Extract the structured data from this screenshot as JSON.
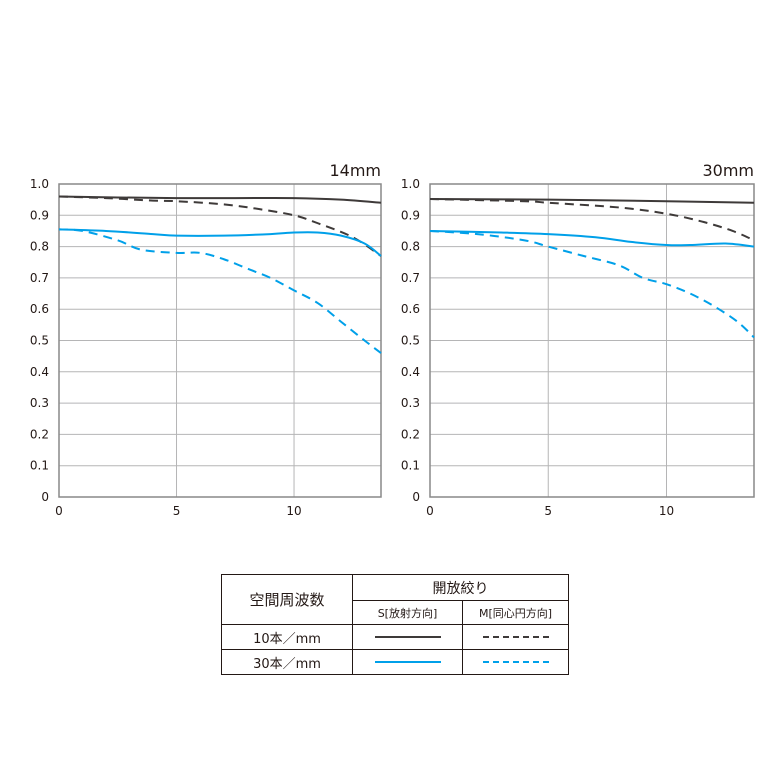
{
  "chart_data": [
    {
      "type": "line",
      "title": "14mm",
      "xlim": [
        0,
        13.7
      ],
      "ylim": [
        0,
        1.0
      ],
      "xticks": [
        "0",
        "5",
        "10"
      ],
      "yticks": [
        "0",
        "0.1",
        "0.2",
        "0.3",
        "0.4",
        "0.5",
        "0.6",
        "0.7",
        "0.8",
        "0.9",
        "1.0"
      ],
      "grid": true,
      "series": [
        {
          "key": "S10",
          "color": "#3e3a39",
          "dashed": false,
          "x": [
            0,
            2.5,
            5,
            7.5,
            10,
            12,
            13.7
          ],
          "y": [
            0.96,
            0.957,
            0.955,
            0.955,
            0.955,
            0.95,
            0.94
          ]
        },
        {
          "key": "M10",
          "color": "#3e3a39",
          "dashed": true,
          "x": [
            0,
            2,
            4,
            5,
            7,
            8.5,
            10,
            11,
            12.5,
            13.7
          ],
          "y": [
            0.96,
            0.955,
            0.947,
            0.945,
            0.935,
            0.92,
            0.9,
            0.875,
            0.83,
            0.77
          ]
        },
        {
          "key": "S30",
          "color": "#00a0e9",
          "dashed": false,
          "x": [
            0,
            2,
            4,
            5,
            7,
            9,
            10,
            11,
            12,
            13,
            13.7
          ],
          "y": [
            0.855,
            0.85,
            0.84,
            0.835,
            0.835,
            0.84,
            0.845,
            0.845,
            0.835,
            0.81,
            0.77
          ]
        },
        {
          "key": "M30",
          "color": "#00a0e9",
          "dashed": true,
          "x": [
            0,
            1,
            2.5,
            3.5,
            5,
            6,
            7,
            8,
            9,
            10,
            11,
            12,
            13,
            13.7
          ],
          "y": [
            0.855,
            0.85,
            0.82,
            0.79,
            0.78,
            0.78,
            0.76,
            0.73,
            0.7,
            0.66,
            0.62,
            0.56,
            0.5,
            0.46
          ]
        }
      ]
    },
    {
      "type": "line",
      "title": "30mm",
      "xlim": [
        0,
        13.7
      ],
      "ylim": [
        0,
        1.0
      ],
      "xticks": [
        "0",
        "5",
        "10"
      ],
      "yticks": [
        "0",
        "0.1",
        "0.2",
        "0.3",
        "0.4",
        "0.5",
        "0.6",
        "0.7",
        "0.8",
        "0.9",
        "1.0"
      ],
      "grid": true,
      "series": [
        {
          "key": "S10",
          "color": "#3e3a39",
          "dashed": false,
          "x": [
            0,
            5,
            10,
            13.7
          ],
          "y": [
            0.952,
            0.95,
            0.945,
            0.94
          ]
        },
        {
          "key": "M10",
          "color": "#3e3a39",
          "dashed": true,
          "x": [
            0,
            4,
            5,
            8,
            10,
            11.5,
            12.8,
            13.7
          ],
          "y": [
            0.952,
            0.945,
            0.94,
            0.925,
            0.905,
            0.88,
            0.85,
            0.82
          ]
        },
        {
          "key": "S30",
          "color": "#00a0e9",
          "dashed": false,
          "x": [
            0,
            3,
            5,
            7,
            8.5,
            10,
            11,
            12.5,
            13.7
          ],
          "y": [
            0.85,
            0.845,
            0.84,
            0.83,
            0.815,
            0.805,
            0.805,
            0.81,
            0.8
          ]
        },
        {
          "key": "M30",
          "color": "#00a0e9",
          "dashed": true,
          "x": [
            0,
            2,
            4,
            5,
            6.5,
            8,
            9,
            10,
            11,
            12,
            13,
            13.7
          ],
          "y": [
            0.85,
            0.84,
            0.82,
            0.8,
            0.77,
            0.74,
            0.7,
            0.68,
            0.65,
            0.61,
            0.56,
            0.51
          ]
        }
      ]
    }
  ],
  "legend": {
    "spatial_freq_header": "空間周波数",
    "aperture_header": "開放絞り",
    "sagittal_header": "S[放射方向]",
    "meridional_header": "M[同心円方向]",
    "row_10": "10本／mm",
    "row_30": "30本／mm",
    "color_10": "#3e3a39",
    "color_30": "#00a0e9"
  }
}
